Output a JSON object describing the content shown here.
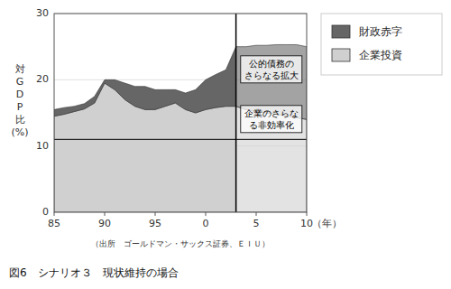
{
  "chart_data": {
    "type": "area",
    "stacked": true,
    "title": "図6　シナリオ３　現状維持の場合",
    "source": "（出所　ゴールドマン・サックス証券、ＥＩＵ）",
    "x_label": "（年）",
    "y_label": [
      "対",
      "G",
      "D",
      "P",
      "比",
      "(%)"
    ],
    "x": [
      85,
      86,
      87,
      88,
      89,
      90,
      91,
      92,
      93,
      94,
      95,
      96,
      97,
      98,
      99,
      100,
      101,
      102,
      103,
      104,
      105,
      106,
      107,
      108,
      109,
      110
    ],
    "xlim": [
      85,
      110
    ],
    "xticks": [
      85,
      90,
      95,
      {
        "value": 100,
        "label": "0"
      },
      {
        "value": 105,
        "label": "5"
      },
      {
        "value": 110,
        "label": "10"
      }
    ],
    "ylim": [
      0,
      30
    ],
    "yticks": [
      0,
      10,
      20,
      30
    ],
    "grid": "y",
    "legend": "right",
    "series": [
      {
        "name": "企業投資",
        "color": "#d0d0d0",
        "values": [
          14.5,
          14.8,
          15.2,
          15.6,
          16.5,
          19.5,
          18.5,
          17.0,
          16.0,
          15.5,
          15.5,
          16.0,
          16.5,
          15.5,
          15.0,
          15.5,
          15.8,
          16.0,
          16.0,
          15.5,
          15.2,
          15.0,
          14.8,
          14.5,
          14.3,
          14.0
        ]
      },
      {
        "name": "財政赤字",
        "color": "#666666",
        "values": [
          1.0,
          1.0,
          0.8,
          0.8,
          1.0,
          0.5,
          1.5,
          2.5,
          3.0,
          3.5,
          3.0,
          2.5,
          2.0,
          2.5,
          3.5,
          4.5,
          5.0,
          5.5,
          9.0,
          9.5,
          10.0,
          10.2,
          10.5,
          10.8,
          11.0,
          11.0
        ]
      }
    ],
    "vertical_lines": [
      103
    ],
    "horizontal_lines": [
      11
    ],
    "annotations": [
      {
        "text": "公的債務の\nさらなる拡大",
        "x": 106.5,
        "y": 21.5
      },
      {
        "text": "企業のさらな\nる非効率化",
        "x": 106.5,
        "y": 14.0
      }
    ]
  }
}
